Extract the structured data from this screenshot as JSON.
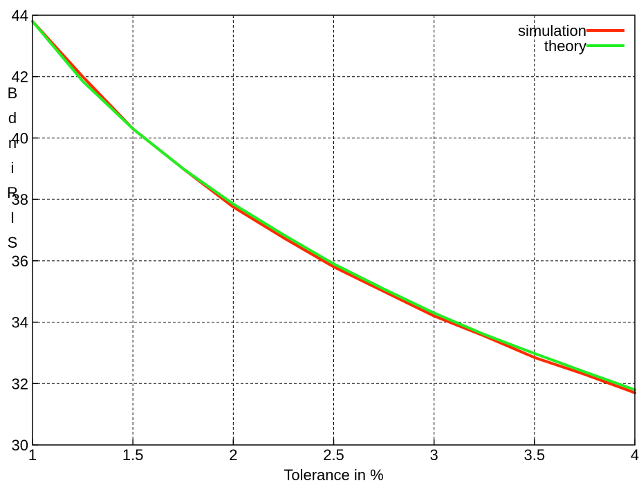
{
  "chart_data": {
    "type": "line",
    "title": "",
    "xlabel": "Tolerance in %",
    "ylabel_letters": [
      "B",
      "d",
      "n",
      "i",
      "R",
      "I",
      "S"
    ],
    "xlim": [
      1,
      4
    ],
    "ylim": [
      30,
      44
    ],
    "x_ticks": [
      1,
      1.5,
      2,
      2.5,
      3,
      3.5,
      4
    ],
    "x_tick_labels": [
      "1",
      "1.5",
      "2",
      "2.5",
      "3",
      "3.5",
      "4"
    ],
    "y_ticks": [
      30,
      32,
      34,
      36,
      38,
      40,
      42,
      44
    ],
    "y_tick_labels": [
      "30",
      "32",
      "34",
      "36",
      "38",
      "40",
      "42",
      "44"
    ],
    "grid": true,
    "legend_position": "top-right",
    "series": [
      {
        "name": "simulation",
        "color": "#ff2a00",
        "x": [
          1,
          1.25,
          1.5,
          1.75,
          2,
          2.25,
          2.5,
          2.75,
          3,
          3.25,
          3.5,
          3.75,
          4
        ],
        "y": [
          43.8,
          42.0,
          40.3,
          39.0,
          37.75,
          36.75,
          35.8,
          35.0,
          34.2,
          33.55,
          32.85,
          32.3,
          31.7
        ]
      },
      {
        "name": "theory",
        "color": "#22ee22",
        "x": [
          1,
          1.25,
          1.5,
          1.75,
          2,
          2.25,
          2.5,
          2.75,
          3,
          3.25,
          3.5,
          3.75,
          4
        ],
        "y": [
          43.8,
          41.85,
          40.3,
          39.0,
          37.85,
          36.85,
          35.9,
          35.08,
          34.3,
          33.6,
          32.98,
          32.38,
          31.8
        ]
      }
    ]
  }
}
